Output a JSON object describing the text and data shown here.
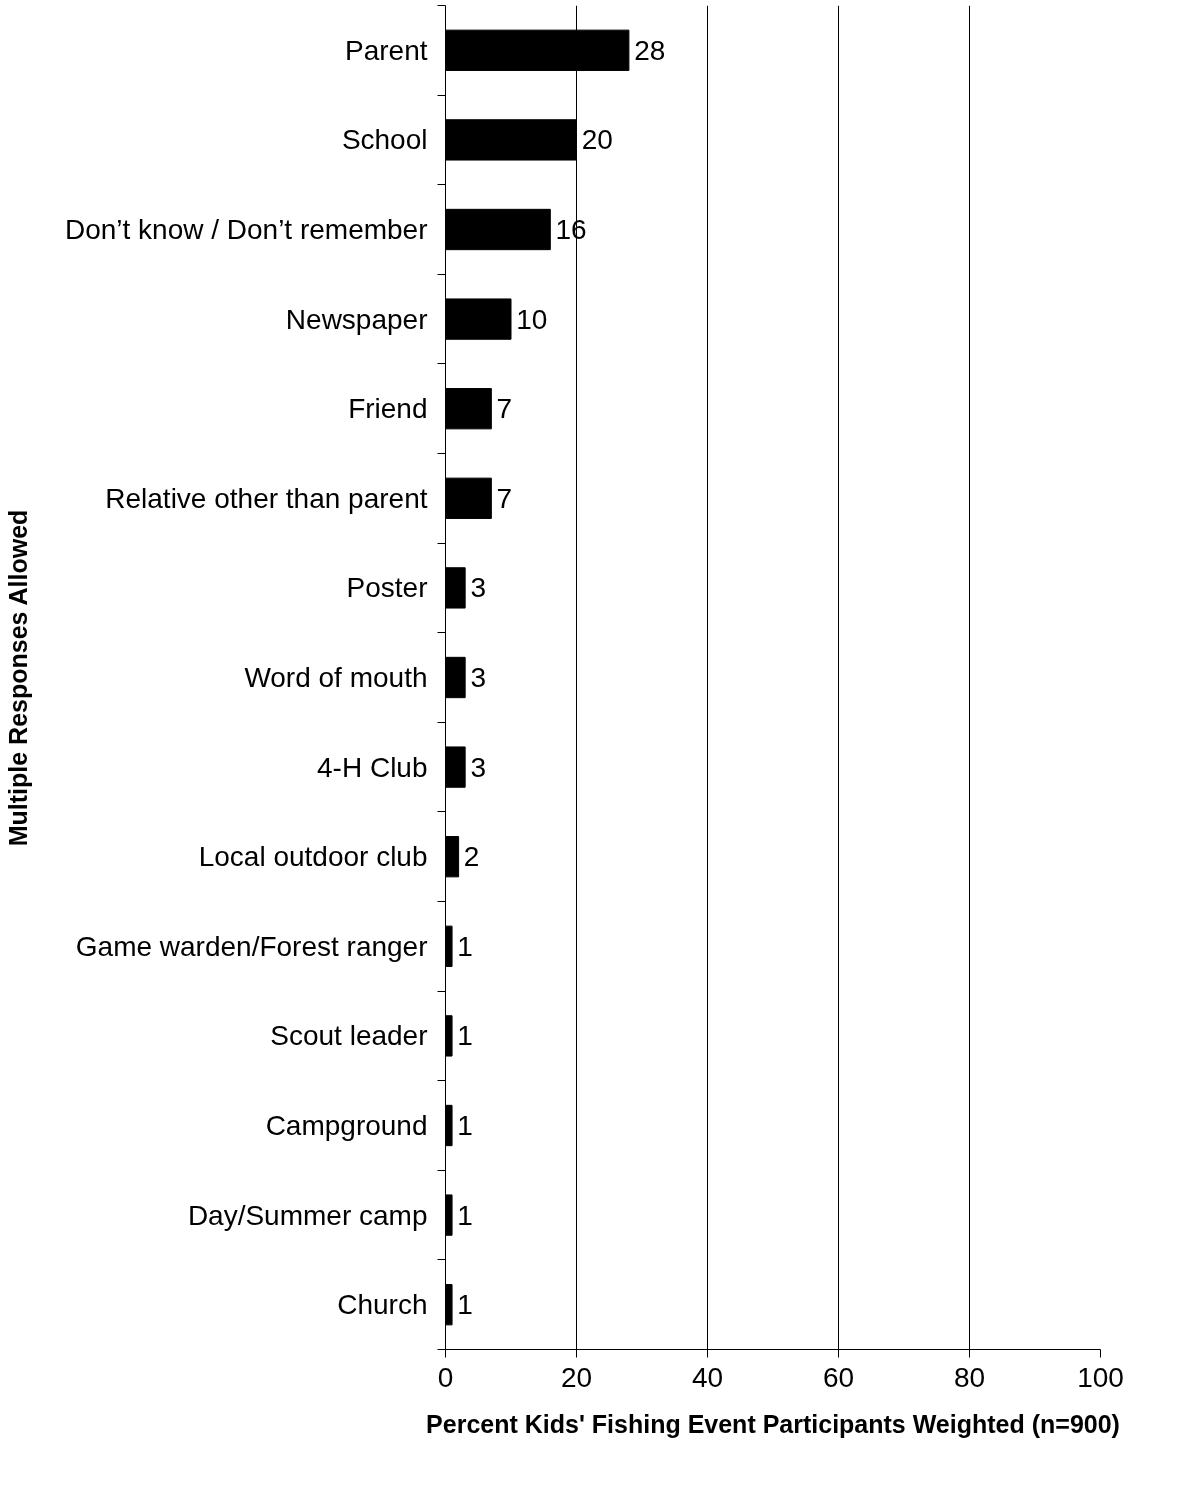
{
  "chart_data": {
    "type": "bar",
    "orientation": "horizontal",
    "xlabel": "Percent Kids' Fishing Event Participants Weighted (n=900)",
    "ylabel": "Multiple Responses Allowed",
    "categories": [
      "Parent",
      "School",
      "Don’t know / Don’t remember",
      "Newspaper",
      "Friend",
      "Relative other than parent",
      "Poster",
      "Word of mouth",
      "4-H Club",
      "Local outdoor club",
      "Game warden/Forest ranger",
      "Scout leader",
      "Campground",
      "Day/Summer camp",
      "Church"
    ],
    "values": [
      28,
      20,
      16,
      10,
      7,
      7,
      3,
      3,
      3,
      2,
      1,
      1,
      1,
      1,
      1
    ],
    "color": "#000000",
    "xlim": [
      0,
      100
    ],
    "xticks": [
      0,
      20,
      40,
      60,
      80,
      100
    ],
    "grid": "x",
    "data_labels": true
  }
}
